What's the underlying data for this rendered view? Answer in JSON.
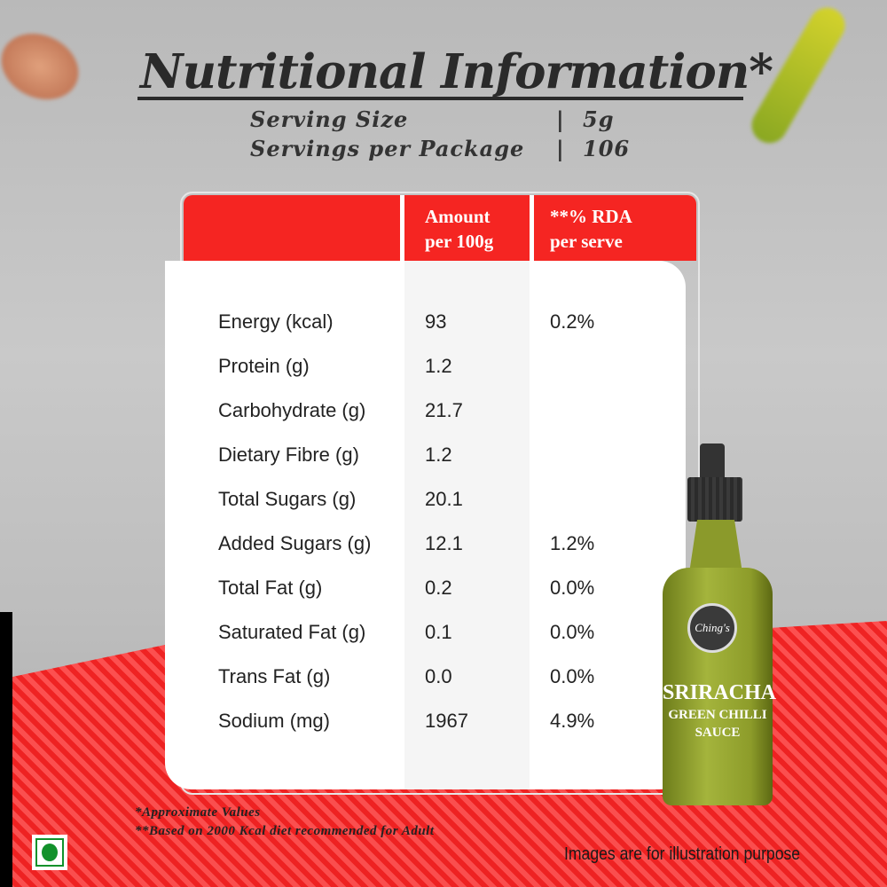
{
  "title": "Nutritional Information*",
  "serving": {
    "size_label": "Serving Size",
    "size_value": "5g",
    "per_package_label": "Servings per Package",
    "per_package_value": "106",
    "separator": "|"
  },
  "table": {
    "headers": [
      "",
      "Amount\nper 100g",
      "**% RDA\nper serve"
    ],
    "header_lines": {
      "amount_1": "Amount",
      "amount_2": "per 100g",
      "rda_1": "**% RDA",
      "rda_2": "per serve"
    },
    "rows": [
      {
        "name": "Energy (kcal)",
        "amount": "93",
        "rda": "0.2%"
      },
      {
        "name": "Protein (g)",
        "amount": "1.2",
        "rda": ""
      },
      {
        "name": "Carbohydrate (g)",
        "amount": "21.7",
        "rda": ""
      },
      {
        "name": "Dietary Fibre (g)",
        "amount": "1.2",
        "rda": ""
      },
      {
        "name": "Total Sugars (g)",
        "amount": "20.1",
        "rda": ""
      },
      {
        "name": "Added Sugars (g)",
        "amount": "12.1",
        "rda": "1.2%"
      },
      {
        "name": "Total Fat (g)",
        "amount": "0.2",
        "rda": "0.0%"
      },
      {
        "name": "Saturated Fat (g)",
        "amount": "0.1",
        "rda": "0.0%"
      },
      {
        "name": "Trans Fat (g)",
        "amount": "0.0",
        "rda": "0.0%"
      },
      {
        "name": "Sodium (mg)",
        "amount": "1967",
        "rda": "4.9%"
      }
    ]
  },
  "footnotes": [
    "*Approximate Values",
    "**Based on 2000 Kcal diet recommended for Adult"
  ],
  "disclaimer": "Images are for illustration purpose",
  "product": {
    "brand": "Ching's",
    "line1": "SRIRACHA",
    "line2": "GREEN CHILLI",
    "line3": "SAUCE"
  },
  "colors": {
    "header_red": "#f52522",
    "veg_green": "#12912b",
    "text_dark": "#2a2a2a"
  },
  "icons": [
    "veg-mark-icon"
  ]
}
